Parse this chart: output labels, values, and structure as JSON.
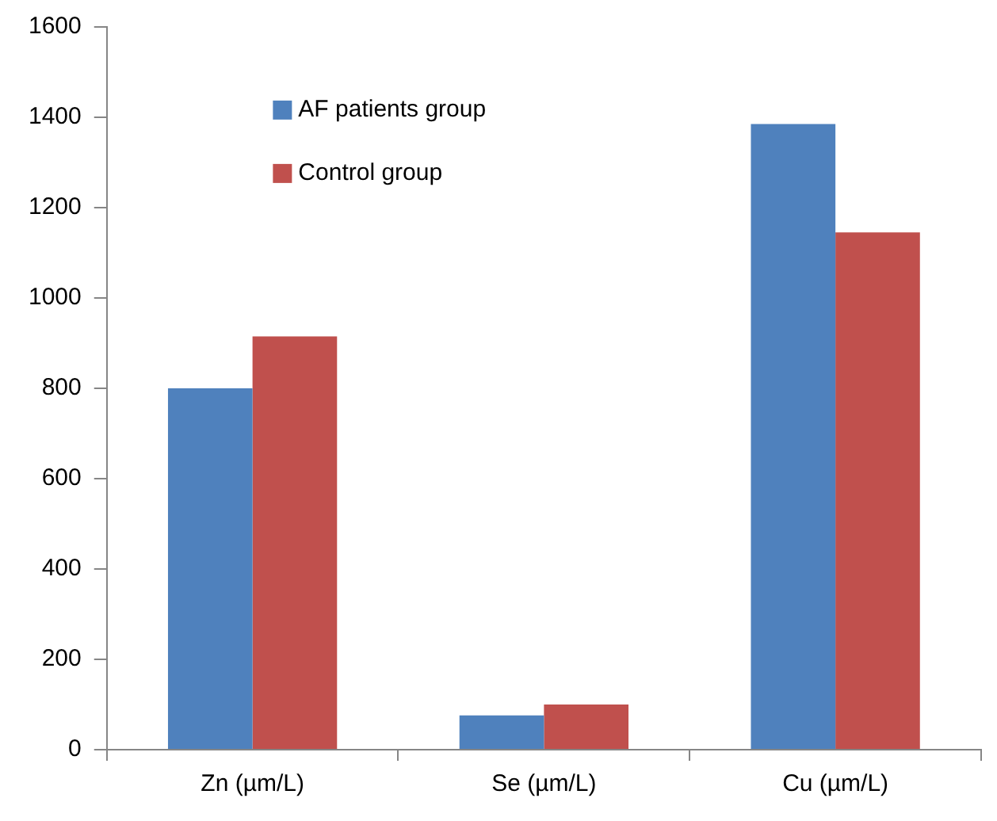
{
  "chart_data": {
    "type": "bar",
    "categories": [
      "Zn (µm/L)",
      "Se (µm/L)",
      "Cu (µm/L)"
    ],
    "series": [
      {
        "name": "AF patients group",
        "color": "#4f81bd",
        "values": [
          800,
          76,
          1385
        ]
      },
      {
        "name": "Control group",
        "color": "#c0504d",
        "values": [
          915,
          100,
          1145
        ]
      }
    ],
    "ylim": [
      0,
      1600
    ],
    "yticks": [
      0,
      200,
      400,
      600,
      800,
      1000,
      1200,
      1400,
      1600
    ],
    "grid": false,
    "legend": "top left"
  }
}
